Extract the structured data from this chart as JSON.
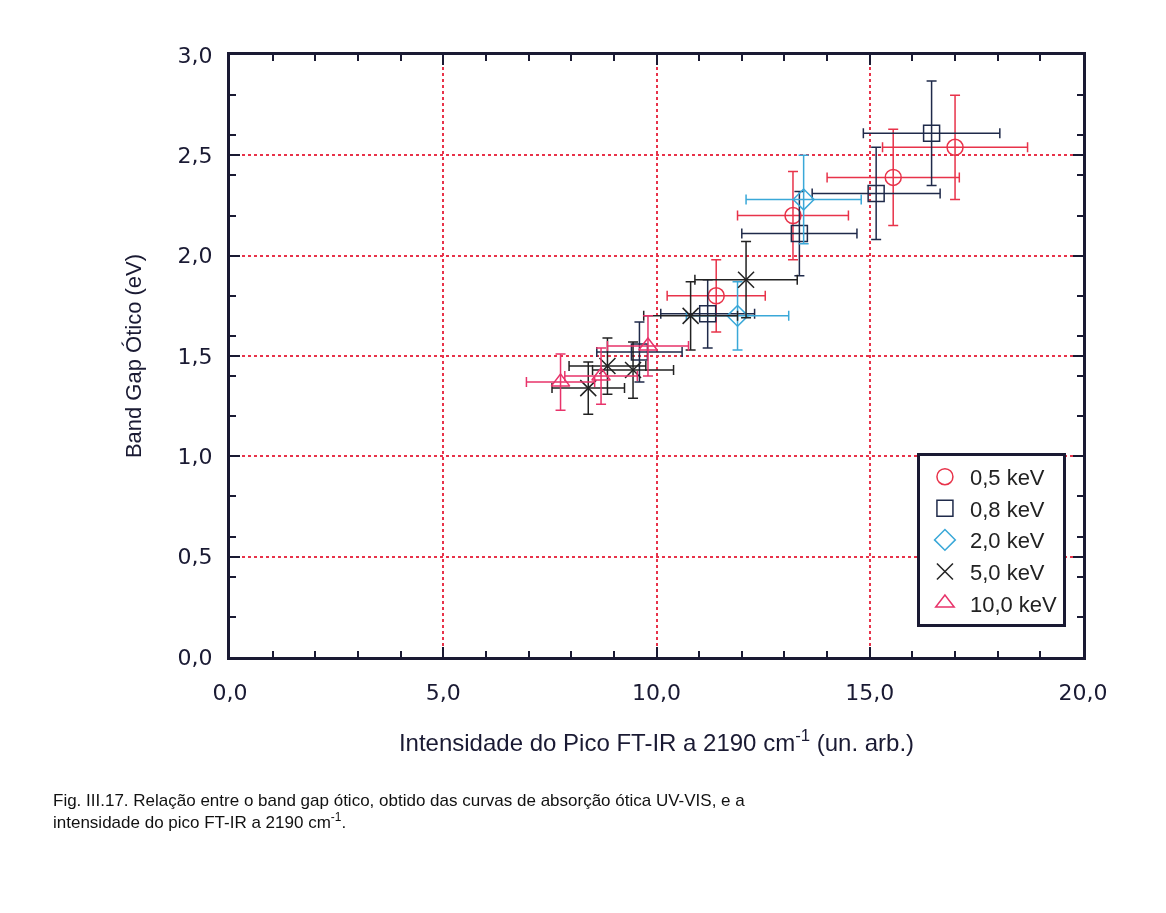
{
  "chart_data": {
    "type": "scatter",
    "xlabel": "Intensidade do Pico FT-IR a 2190 cm$^{-1}$ (un. arb.)",
    "ylabel": "Band Gap Ótico (eV)",
    "xlim": [
      0,
      20
    ],
    "ylim": [
      0,
      3
    ],
    "xticks": [
      {
        "value": 0,
        "label": "0,0"
      },
      {
        "value": 5,
        "label": "5,0"
      },
      {
        "value": 10,
        "label": "10,0"
      },
      {
        "value": 15,
        "label": "15,0"
      },
      {
        "value": 20,
        "label": "20,0"
      }
    ],
    "yticks": [
      {
        "value": 0,
        "label": "0,0"
      },
      {
        "value": 0.5,
        "label": "0,5"
      },
      {
        "value": 1,
        "label": "1,0"
      },
      {
        "value": 1.5,
        "label": "1,5"
      },
      {
        "value": 2,
        "label": "2,0"
      },
      {
        "value": 2.5,
        "label": "2,5"
      },
      {
        "value": 3,
        "label": "3,0"
      }
    ],
    "grid": true,
    "legend": "bottom right",
    "line_style": "none",
    "annotations": [
      "Fig. III.17. Relação entre o band gap ótico, obtido das curvas de absorção ótica UV-VIS, e a intensidade do pico FT-IR a 2190 cm$^{-1}$."
    ],
    "series": [
      {
        "name": "0,5 keV",
        "color": "#e8334a",
        "marker": "circle",
        "x": [
          17.0,
          15.55,
          13.2,
          11.4
        ],
        "values": [
          2.54,
          2.39,
          2.2,
          1.8
        ],
        "xerrors": [
          1.7,
          1.55,
          1.3,
          1.15
        ],
        "errors": [
          0.26,
          0.24,
          0.22,
          0.18
        ]
      },
      {
        "name": "0,8 keV",
        "color": "#1f2a4a",
        "marker": "square",
        "x": [
          16.45,
          15.15,
          13.35,
          11.2,
          9.6
        ],
        "values": [
          2.61,
          2.31,
          2.11,
          1.71,
          1.52
        ],
        "xerrors": [
          1.6,
          1.5,
          1.35,
          1.1,
          1.0
        ],
        "errors": [
          0.26,
          0.23,
          0.21,
          0.17,
          0.15
        ]
      },
      {
        "name": "2,0 keV",
        "color": "#3aa8d8",
        "marker": "diamond",
        "x": [
          13.45,
          11.9
        ],
        "values": [
          2.28,
          1.7
        ],
        "xerrors": [
          1.35,
          1.2
        ],
        "errors": [
          0.22,
          0.17
        ]
      },
      {
        "name": "5,0 keV",
        "color": "#222222",
        "marker": "cross",
        "x": [
          12.1,
          10.8,
          8.85,
          9.45,
          8.4
        ],
        "values": [
          1.88,
          1.7,
          1.45,
          1.43,
          1.34
        ],
        "xerrors": [
          1.2,
          1.1,
          0.9,
          0.95,
          0.85
        ],
        "errors": [
          0.19,
          0.17,
          0.14,
          0.14,
          0.13
        ]
      },
      {
        "name": "10,0 keV",
        "color": "#e8336a",
        "marker": "triangle",
        "x": [
          9.8,
          8.7,
          7.75
        ],
        "values": [
          1.55,
          1.4,
          1.37
        ],
        "xerrors": [
          0.95,
          0.85,
          0.8
        ],
        "errors": [
          0.15,
          0.14,
          0.14
        ]
      }
    ]
  }
}
